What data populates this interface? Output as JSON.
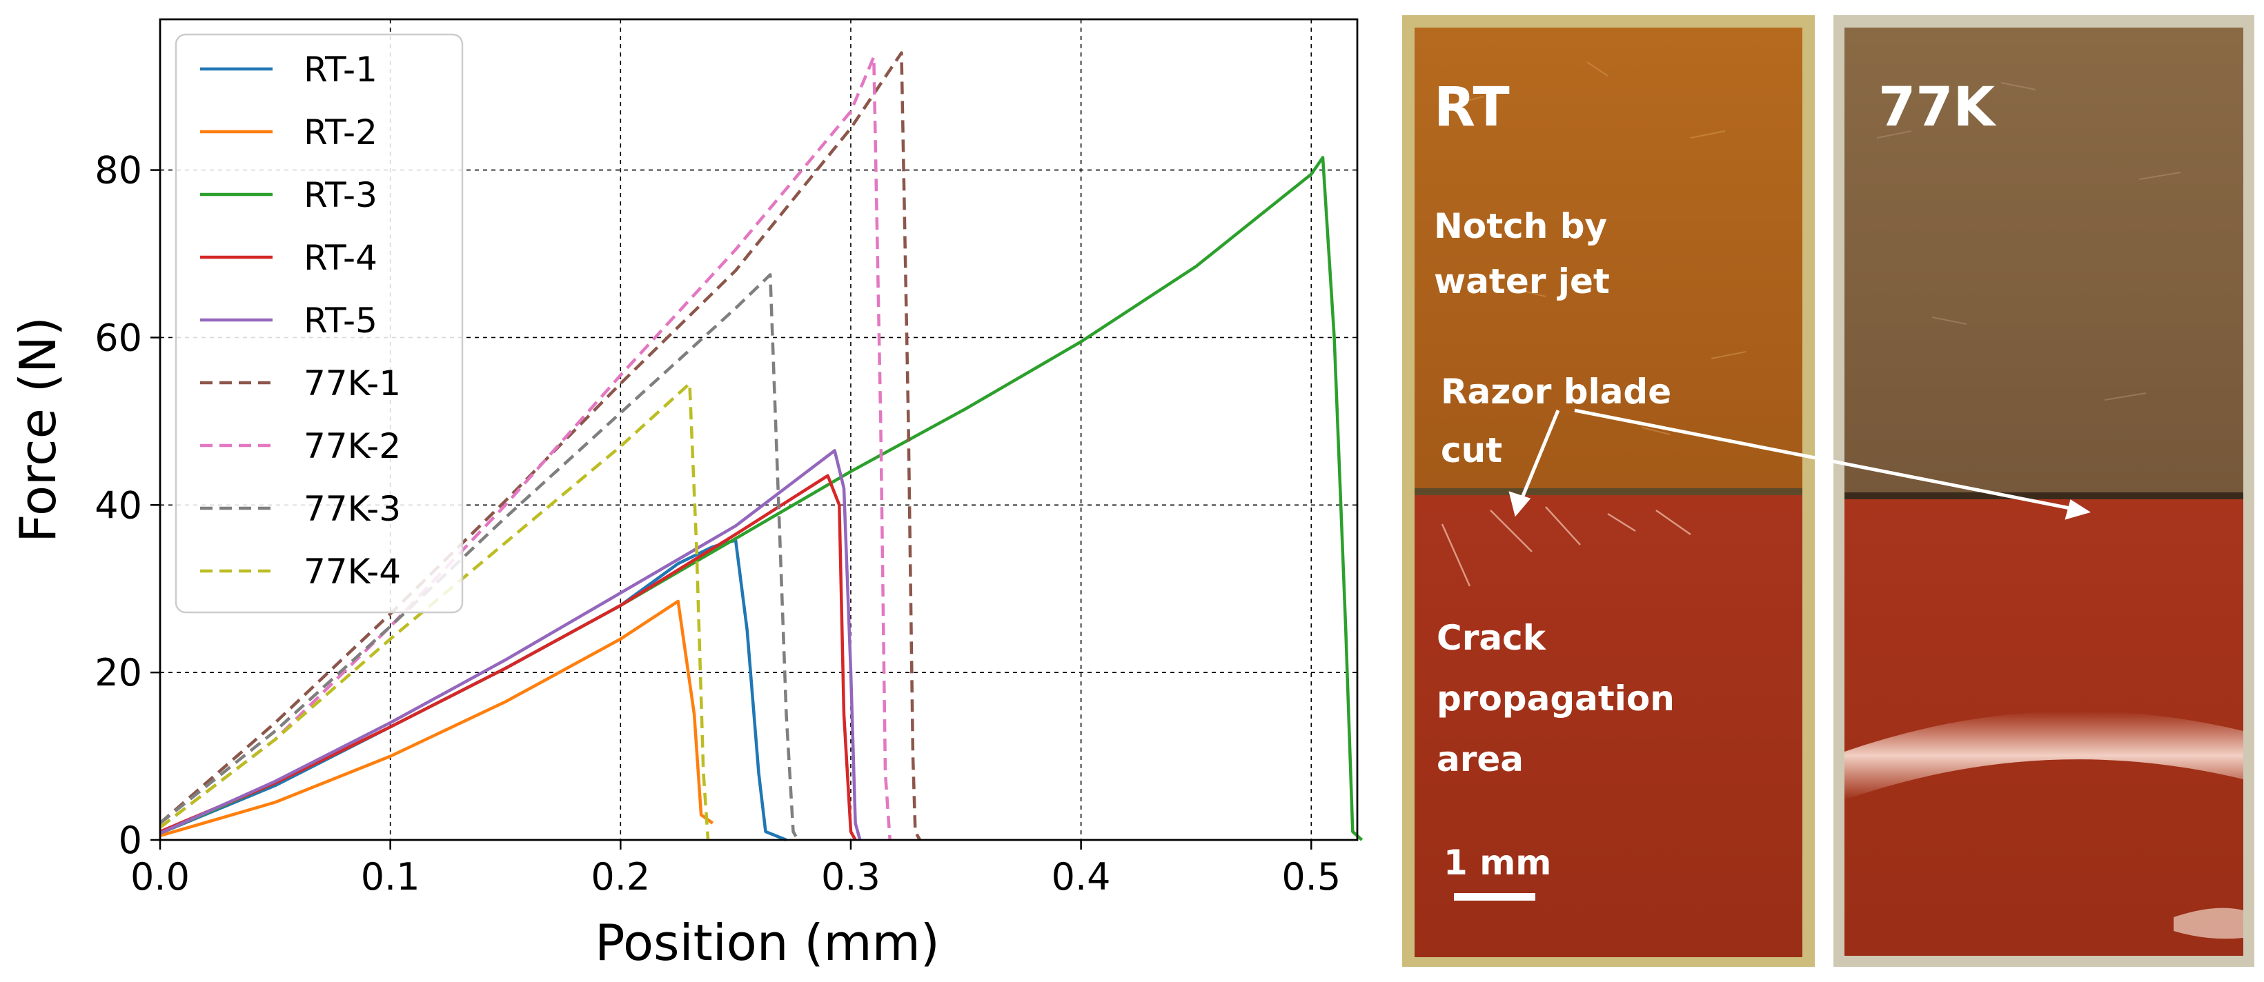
{
  "chart_data": {
    "type": "line",
    "title": "",
    "xlabel": "Position (mm)",
    "ylabel": "Force (N)",
    "xlim": [
      0.0,
      0.52
    ],
    "ylim": [
      0,
      98
    ],
    "xticks": [
      0.0,
      0.1,
      0.2,
      0.3,
      0.4,
      0.5
    ],
    "xtick_labels": [
      "0.0",
      "0.1",
      "0.2",
      "0.3",
      "0.4",
      "0.5"
    ],
    "yticks": [
      0,
      20,
      40,
      60,
      80
    ],
    "ytick_labels": [
      "0",
      "20",
      "40",
      "60",
      "80"
    ],
    "grid": true,
    "legend_position": "upper-left",
    "series": [
      {
        "name": "RT-1",
        "color": "#1f77b4",
        "dash": "solid",
        "points": [
          [
            0,
            0.8
          ],
          [
            0.05,
            6.5
          ],
          [
            0.1,
            13.5
          ],
          [
            0.15,
            20.5
          ],
          [
            0.2,
            28
          ],
          [
            0.225,
            33
          ],
          [
            0.24,
            35
          ],
          [
            0.25,
            35.8
          ],
          [
            0.255,
            25
          ],
          [
            0.26,
            8
          ],
          [
            0.263,
            1
          ],
          [
            0.272,
            0
          ]
        ]
      },
      {
        "name": "RT-2",
        "color": "#ff7f0e",
        "dash": "solid",
        "points": [
          [
            0,
            0.5
          ],
          [
            0.05,
            4.5
          ],
          [
            0.1,
            10
          ],
          [
            0.15,
            16.5
          ],
          [
            0.2,
            24
          ],
          [
            0.225,
            28.5
          ],
          [
            0.232,
            15
          ],
          [
            0.235,
            3
          ],
          [
            0.24,
            2
          ]
        ]
      },
      {
        "name": "RT-3",
        "color": "#2ca02c",
        "dash": "solid",
        "points": [
          [
            0,
            0.8
          ],
          [
            0.05,
            6.8
          ],
          [
            0.1,
            13.5
          ],
          [
            0.15,
            20.5
          ],
          [
            0.2,
            28
          ],
          [
            0.25,
            36
          ],
          [
            0.3,
            44
          ],
          [
            0.35,
            51.5
          ],
          [
            0.4,
            59.5
          ],
          [
            0.45,
            68.5
          ],
          [
            0.5,
            79.5
          ],
          [
            0.505,
            81.5
          ],
          [
            0.51,
            60
          ],
          [
            0.515,
            25
          ],
          [
            0.518,
            1
          ],
          [
            0.522,
            0
          ]
        ]
      },
      {
        "name": "RT-4",
        "color": "#d62728",
        "dash": "solid",
        "points": [
          [
            0,
            1
          ],
          [
            0.05,
            6.8
          ],
          [
            0.1,
            13.5
          ],
          [
            0.15,
            20.5
          ],
          [
            0.2,
            28
          ],
          [
            0.25,
            36.5
          ],
          [
            0.29,
            43.5
          ],
          [
            0.295,
            40
          ],
          [
            0.297,
            15
          ],
          [
            0.3,
            1
          ],
          [
            0.302,
            0
          ]
        ]
      },
      {
        "name": "RT-5",
        "color": "#9467bd",
        "dash": "solid",
        "points": [
          [
            0,
            0.8
          ],
          [
            0.05,
            7
          ],
          [
            0.1,
            14
          ],
          [
            0.15,
            21.5
          ],
          [
            0.2,
            29.5
          ],
          [
            0.25,
            37.5
          ],
          [
            0.293,
            46.5
          ],
          [
            0.297,
            42
          ],
          [
            0.3,
            20
          ],
          [
            0.302,
            2
          ],
          [
            0.304,
            0
          ]
        ]
      },
      {
        "name": "77K-1",
        "color": "#8c564b",
        "dash": "dashed",
        "points": [
          [
            0,
            2
          ],
          [
            0.05,
            14
          ],
          [
            0.1,
            27
          ],
          [
            0.15,
            40.5
          ],
          [
            0.2,
            54.5
          ],
          [
            0.25,
            68
          ],
          [
            0.3,
            85
          ],
          [
            0.322,
            94
          ],
          [
            0.325,
            50
          ],
          [
            0.327,
            10
          ],
          [
            0.328,
            1
          ],
          [
            0.33,
            0
          ]
        ]
      },
      {
        "name": "77K-2",
        "color": "#e377c2",
        "dash": "dashed",
        "points": [
          [
            0,
            1.5
          ],
          [
            0.05,
            12
          ],
          [
            0.1,
            25.5
          ],
          [
            0.15,
            40
          ],
          [
            0.2,
            55.5
          ],
          [
            0.25,
            70.5
          ],
          [
            0.3,
            87
          ],
          [
            0.31,
            93.5
          ],
          [
            0.313,
            50
          ],
          [
            0.315,
            8
          ],
          [
            0.317,
            0
          ]
        ]
      },
      {
        "name": "77K-3",
        "color": "#7f7f7f",
        "dash": "dashed",
        "points": [
          [
            0,
            2
          ],
          [
            0.05,
            13
          ],
          [
            0.1,
            25.5
          ],
          [
            0.15,
            38.5
          ],
          [
            0.2,
            51
          ],
          [
            0.25,
            63.5
          ],
          [
            0.265,
            67.5
          ],
          [
            0.268,
            45
          ],
          [
            0.272,
            15
          ],
          [
            0.275,
            1
          ],
          [
            0.277,
            0
          ]
        ]
      },
      {
        "name": "77K-4",
        "color": "#bcbd22",
        "dash": "dashed",
        "points": [
          [
            0,
            1.5
          ],
          [
            0.05,
            12
          ],
          [
            0.1,
            24
          ],
          [
            0.15,
            35.5
          ],
          [
            0.2,
            47
          ],
          [
            0.23,
            54.5
          ],
          [
            0.233,
            35
          ],
          [
            0.236,
            8
          ],
          [
            0.238,
            0
          ]
        ]
      }
    ]
  },
  "photos": {
    "rt_label": "RT",
    "k77_label": "77K",
    "notch_line1": "Notch by",
    "notch_line2": "water jet",
    "razor_line1": "Razor blade",
    "razor_line2": "cut",
    "crack_line1": "Crack",
    "crack_line2": "propagation",
    "crack_line3": "area",
    "scale_label": "1 mm"
  }
}
